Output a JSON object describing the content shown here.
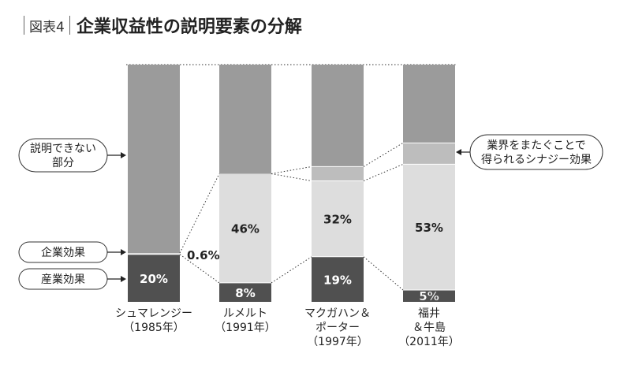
{
  "title": {
    "figure_label": "図表4",
    "text": "企業収益性の説明要素の分解"
  },
  "chart_data": {
    "type": "bar",
    "stacked": true,
    "ylim": [
      0,
      100
    ],
    "categories": [
      {
        "lines": [
          "シュマレンジー",
          "（1985年）"
        ]
      },
      {
        "lines": [
          "ルメルト",
          "（1991年）"
        ]
      },
      {
        "lines": [
          "マクガハン＆",
          "ポーター",
          "（1997年）"
        ]
      },
      {
        "lines": [
          "福井",
          "＆牛島",
          "（2011年）"
        ]
      }
    ],
    "series": [
      {
        "name": "産業効果",
        "color": "#505050",
        "values": [
          20,
          8,
          19,
          5
        ],
        "labels": [
          "20%",
          "8%",
          "19%",
          "5%"
        ]
      },
      {
        "name": "企業効果",
        "color": "#dddddd",
        "values": [
          0.6,
          46,
          32,
          53
        ],
        "labels": [
          "0.6%",
          "46%",
          "32%",
          "53%"
        ]
      },
      {
        "name": "業界をまたぐことで得られるシナジー効果",
        "color": "#bdbdbd",
        "values": [
          0,
          0,
          6,
          9
        ],
        "labels": [
          "",
          "",
          "",
          ""
        ]
      },
      {
        "name": "説明できない部分",
        "color": "#9b9b9b",
        "values": [
          79.4,
          46,
          43,
          33
        ],
        "labels": [
          "",
          "",
          "",
          ""
        ]
      }
    ],
    "callouts": {
      "unexplained": [
        "説明できない",
        "部分"
      ],
      "firm": [
        "企業効果"
      ],
      "industry": [
        "産業効果"
      ],
      "synergy": [
        "業界をまたぐことで",
        "得られるシナジー効果"
      ]
    }
  }
}
